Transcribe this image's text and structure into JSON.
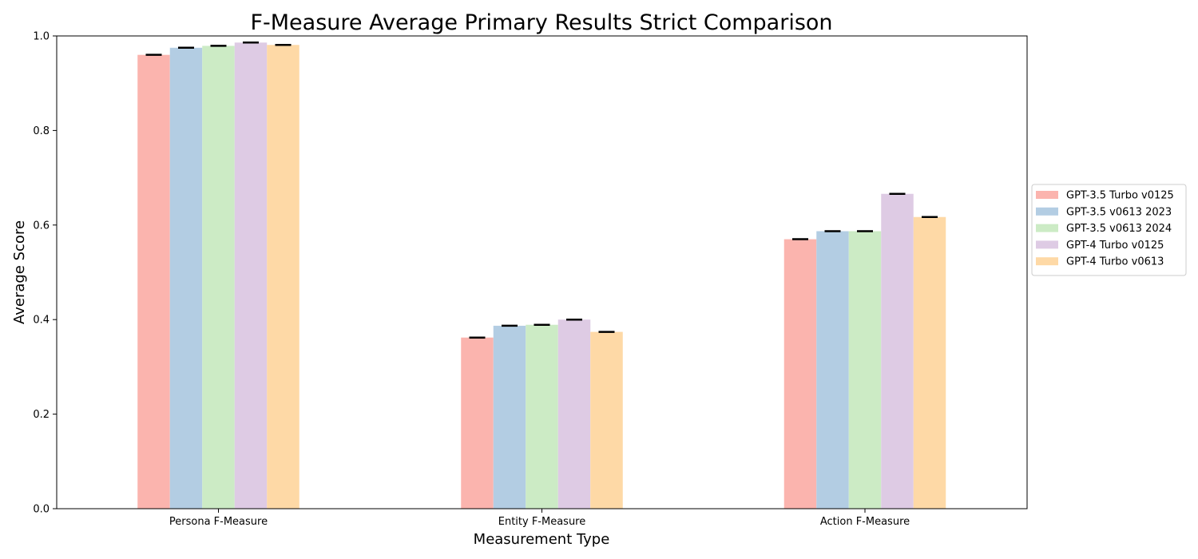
{
  "chart_data": {
    "type": "bar",
    "title": "F-Measure Average Primary Results Strict Comparison",
    "xlabel": "Measurement Type",
    "ylabel": "Average Score",
    "ylim": [
      0,
      1
    ],
    "yticks": [
      "0.0",
      "0.2",
      "0.4",
      "0.6",
      "0.8",
      "1.0"
    ],
    "categories": [
      "Persona F-Measure",
      "Entity F-Measure",
      "Action F-Measure"
    ],
    "series": [
      {
        "name": "GPT-3.5 Turbo v0125",
        "color": "#fbb4ae",
        "values": [
          0.96,
          0.362,
          0.57
        ]
      },
      {
        "name": "GPT-3.5 v0613 2023",
        "color": "#b3cde3",
        "values": [
          0.975,
          0.387,
          0.587
        ]
      },
      {
        "name": "GPT-3.5 v0613 2024",
        "color": "#ccebc5",
        "values": [
          0.979,
          0.389,
          0.587
        ]
      },
      {
        "name": "GPT-4 Turbo v0125",
        "color": "#decbe4",
        "values": [
          0.986,
          0.4,
          0.666
        ]
      },
      {
        "name": "GPT-4 Turbo v0613",
        "color": "#fed9a6",
        "values": [
          0.981,
          0.374,
          0.617
        ]
      }
    ],
    "error_bars": true,
    "grid": false,
    "legend_position": "right"
  }
}
